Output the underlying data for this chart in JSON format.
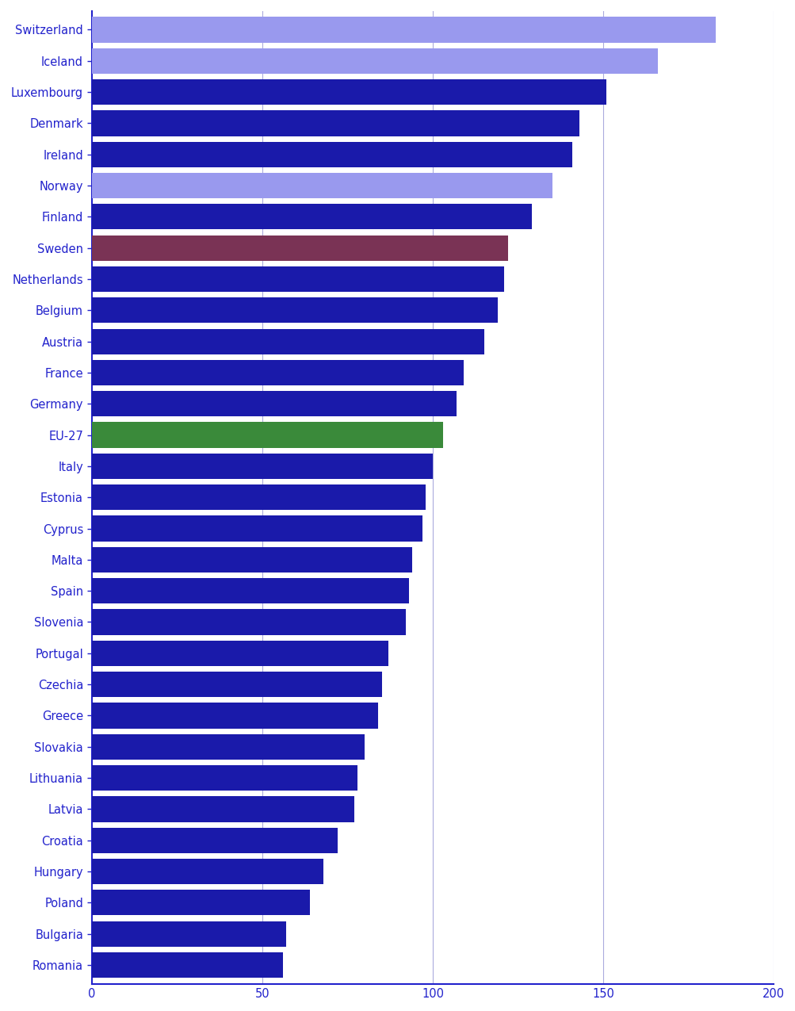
{
  "countries": [
    "Switzerland",
    "Iceland",
    "Luxembourg",
    "Denmark",
    "Ireland",
    "Norway",
    "Finland",
    "Sweden",
    "Netherlands",
    "Belgium",
    "Austria",
    "France",
    "Germany",
    "EU-27",
    "Italy",
    "Estonia",
    "Cyprus",
    "Malta",
    "Spain",
    "Slovenia",
    "Portugal",
    "Czechia",
    "Greece",
    "Slovakia",
    "Lithuania",
    "Latvia",
    "Croatia",
    "Hungary",
    "Poland",
    "Bulgaria",
    "Romania"
  ],
  "values": [
    183,
    166,
    151,
    143,
    141,
    135,
    129,
    122,
    121,
    119,
    115,
    109,
    107,
    103,
    100,
    98,
    97,
    94,
    93,
    92,
    87,
    85,
    84,
    80,
    78,
    77,
    72,
    68,
    64,
    57,
    56
  ],
  "colors": [
    "#9999ee",
    "#9999ee",
    "#1a1aaa",
    "#1a1aaa",
    "#1a1aaa",
    "#9999ee",
    "#1a1aaa",
    "#7a3355",
    "#1a1aaa",
    "#1a1aaa",
    "#1a1aaa",
    "#1a1aaa",
    "#1a1aaa",
    "#3a8a3a",
    "#1a1aaa",
    "#1a1aaa",
    "#1a1aaa",
    "#1a1aaa",
    "#1a1aaa",
    "#1a1aaa",
    "#1a1aaa",
    "#1a1aaa",
    "#1a1aaa",
    "#1a1aaa",
    "#1a1aaa",
    "#1a1aaa",
    "#1a1aaa",
    "#1a1aaa",
    "#1a1aaa",
    "#1a1aaa",
    "#1a1aaa"
  ],
  "xlim": [
    0,
    200
  ],
  "xticks": [
    0,
    50,
    100,
    150,
    200
  ],
  "bar_height": 0.82,
  "background_color": "#ffffff",
  "text_color": "#2222cc",
  "axis_color": "#2222cc",
  "grid_color": "#aaaadd",
  "label_fontsize": 10.5,
  "tick_fontsize": 10.5
}
